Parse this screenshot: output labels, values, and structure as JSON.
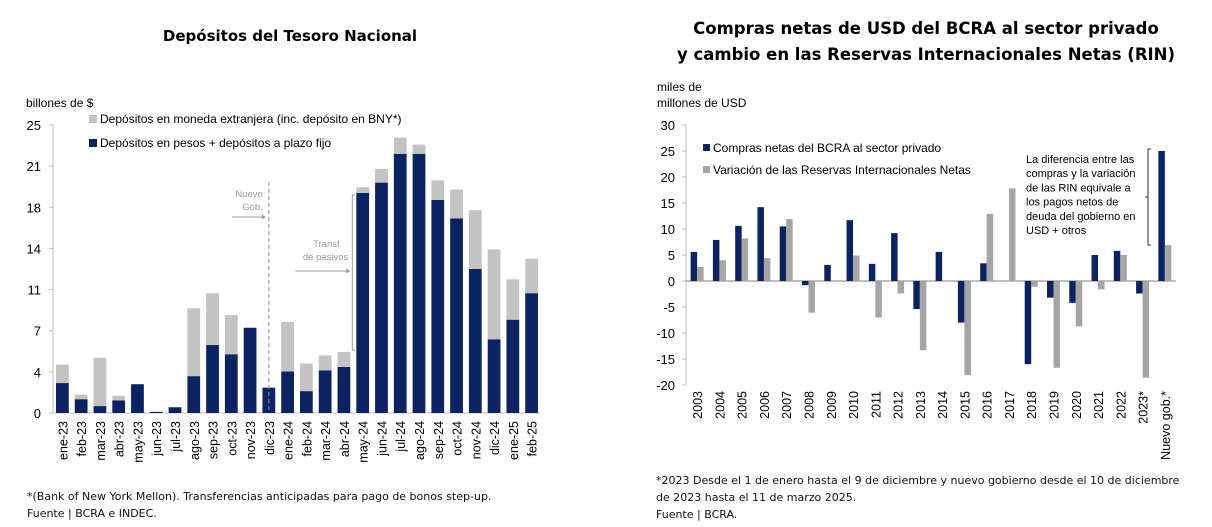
{
  "left": {
    "title": "Depósitos del Tesoro Nacional",
    "footnote_1": "*(Bank of New York Mellon). Transferencias anticipadas para pago de bonos step-up.",
    "footnote_2": "Fuente | BCRA e INDEC."
  },
  "right": {
    "title_line_1": "Compras netas de USD del BCRA al sector privado",
    "title_line_2": "y cambio en las Reservas Internacionales Netas (RIN)",
    "footnote_1": "*2023 Desde el 1 de enero hasta el 9 de diciembre y nuevo gobierno desde el 10 de diciembre",
    "footnote_2": "de 2023 hasta el 11 de marzo 2025.",
    "footnote_3": "Fuente | BCRA."
  },
  "colors": {
    "navy": "#0b2461",
    "light_gray": "#c3c3c3",
    "mid_gray": "#a5a5a5",
    "annotation_gray": "#9a9a9a"
  },
  "chart_data": [
    {
      "type": "bar",
      "stacked": true,
      "title": "Depósitos del Tesoro Nacional",
      "ylabel": "billones de $",
      "xlabel": "",
      "ylim": [
        0,
        25
      ],
      "yticks": [
        0,
        3.571,
        7.143,
        10.714,
        14.286,
        17.857,
        21.429,
        25
      ],
      "ytick_labels": [
        "0",
        "4",
        "7",
        "11",
        "14",
        "18",
        "21",
        "25"
      ],
      "grid": false,
      "legend_position": "top-left",
      "categories": [
        "ene-23",
        "feb-23",
        "mar-23",
        "abr-23",
        "may-23",
        "jun-23",
        "jul-23",
        "ago-23",
        "sep-23",
        "oct-23",
        "nov-23",
        "dic-23",
        "ene-24",
        "feb-24",
        "mar-24",
        "abr-24",
        "may-24",
        "jun-24",
        "jul-24",
        "ago-24",
        "sep-24",
        "oct-24",
        "nov-24",
        "dic-24",
        "ene-25",
        "feb-25"
      ],
      "series": [
        {
          "name": "Depósitos en pesos + depósitos a plazo fijo",
          "color": "#0b2461",
          "values": [
            2.6,
            1.2,
            0.6,
            1.1,
            2.5,
            0.1,
            0.5,
            3.2,
            5.9,
            5.1,
            7.4,
            2.2,
            3.6,
            1.9,
            3.7,
            4.0,
            19.1,
            20.0,
            22.5,
            22.5,
            18.5,
            16.9,
            12.5,
            6.4,
            8.1,
            10.4
          ]
        },
        {
          "name": "Depósitos en moneda extranjera (inc. depósito en BNY*)",
          "color": "#c3c3c3",
          "values": [
            1.6,
            0.4,
            4.2,
            0.4,
            0.0,
            0.0,
            0.0,
            5.9,
            4.5,
            3.4,
            0.0,
            0.0,
            4.3,
            2.4,
            1.3,
            1.3,
            0.5,
            1.2,
            1.4,
            0.8,
            1.7,
            2.5,
            5.1,
            7.8,
            3.5,
            3.0
          ]
        }
      ],
      "annotations": [
        {
          "text_1": "Nuevo",
          "text_2": "Gob.",
          "at_category": "dic-23",
          "style": "dashed vertical line with arrow"
        },
        {
          "text_1": "Transf.",
          "text_2": "de pasivos",
          "from_category": "may-24",
          "style": "bracket with arrow"
        }
      ]
    },
    {
      "type": "bar",
      "stacked": false,
      "title": "Compras netas de USD del BCRA al sector privado y cambio en las Reservas Internacionales Netas (RIN)",
      "ylabel_1": "miles de",
      "ylabel_2": "millones de USD",
      "xlabel": "",
      "ylim": [
        -20,
        30
      ],
      "yticks": [
        -20,
        -15,
        -10,
        -5,
        0,
        5,
        10,
        15,
        20,
        25,
        30
      ],
      "grid": false,
      "legend_position": "top-left",
      "categories": [
        "2003",
        "2004",
        "2005",
        "2006",
        "2007",
        "2008",
        "2009",
        "2010",
        "2011",
        "2012",
        "2013",
        "2014",
        "2015",
        "2016",
        "2017",
        "2018",
        "2019",
        "2020",
        "2021",
        "2022",
        "2023*",
        "Nuevo gob.*"
      ],
      "series": [
        {
          "name": "Compras netas del BCRA al sector privado",
          "color": "#0b2461",
          "values": [
            5.6,
            7.9,
            10.6,
            14.2,
            10.5,
            -0.8,
            3.1,
            11.7,
            3.3,
            9.2,
            -5.4,
            5.6,
            -8.0,
            3.4,
            0.0,
            -16.0,
            -3.2,
            -4.2,
            5.0,
            5.8,
            -2.4,
            25.0
          ]
        },
        {
          "name": "Variación de las Reservas Internacionales Netas",
          "color": "#a5a5a5",
          "values": [
            2.7,
            4.0,
            8.2,
            4.4,
            11.9,
            -6.1,
            0.0,
            4.9,
            -7.0,
            -2.4,
            -13.3,
            -0.1,
            -18.1,
            12.9,
            17.8,
            -1.1,
            -16.7,
            -8.7,
            -1.6,
            5.0,
            -18.6,
            6.9
          ]
        }
      ],
      "annotation_lines": [
        "La diferencia entre las",
        "compras y la variación",
        "de las RIN  equivale a",
        "los pagos netos de",
        "deuda del gobierno en",
        "USD + otros"
      ]
    }
  ]
}
